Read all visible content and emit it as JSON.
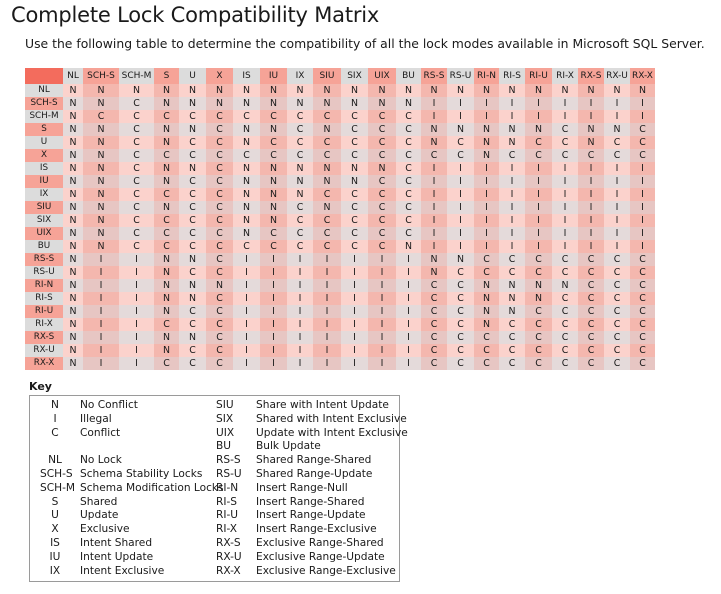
{
  "title": "Complete Lock Compatibility Matrix",
  "subtitle": "Use the following table to determine the compatibility of all the lock modes available in Microsoft SQL Server.",
  "colors": {
    "corner": "#f36c5d",
    "header_gray": "#dcdcdc",
    "header_pink": "#f6a397",
    "cell_pink": "#fbd2cc",
    "cell_pink_alt": "#f4b7ae",
    "cell_gray": "#e4dada",
    "cell_gray_alt": "#e7c6c3"
  },
  "matrix": {
    "columns": [
      "NL",
      "SCH-S",
      "SCH-M",
      "S",
      "U",
      "X",
      "IS",
      "IU",
      "IX",
      "SIU",
      "SIX",
      "UIX",
      "BU",
      "RS-S",
      "RS-U",
      "RI-N",
      "RI-S",
      "RI-U",
      "RI-X",
      "RX-S",
      "RX-U",
      "RX-X"
    ],
    "rows": [
      {
        "label": "NL",
        "cells": [
          "N",
          "N",
          "N",
          "N",
          "N",
          "N",
          "N",
          "N",
          "N",
          "N",
          "N",
          "N",
          "N",
          "N",
          "N",
          "N",
          "N",
          "N",
          "N",
          "N",
          "N",
          "N"
        ]
      },
      {
        "label": "SCH-S",
        "cells": [
          "N",
          "N",
          "C",
          "N",
          "N",
          "N",
          "N",
          "N",
          "N",
          "N",
          "N",
          "N",
          "N",
          "I",
          "I",
          "I",
          "I",
          "I",
          "I",
          "I",
          "I",
          "I"
        ]
      },
      {
        "label": "SCH-M",
        "cells": [
          "N",
          "C",
          "C",
          "C",
          "C",
          "C",
          "C",
          "C",
          "C",
          "C",
          "C",
          "C",
          "C",
          "I",
          "I",
          "I",
          "I",
          "I",
          "I",
          "I",
          "I",
          "I"
        ]
      },
      {
        "label": "S",
        "cells": [
          "N",
          "N",
          "C",
          "N",
          "N",
          "C",
          "N",
          "N",
          "C",
          "N",
          "C",
          "C",
          "C",
          "N",
          "N",
          "N",
          "N",
          "N",
          "C",
          "N",
          "N",
          "C"
        ]
      },
      {
        "label": "U",
        "cells": [
          "N",
          "N",
          "C",
          "N",
          "C",
          "C",
          "N",
          "C",
          "C",
          "C",
          "C",
          "C",
          "C",
          "N",
          "C",
          "N",
          "N",
          "C",
          "C",
          "N",
          "C",
          "C"
        ]
      },
      {
        "label": "X",
        "cells": [
          "N",
          "N",
          "C",
          "C",
          "C",
          "C",
          "C",
          "C",
          "C",
          "C",
          "C",
          "C",
          "C",
          "C",
          "C",
          "N",
          "C",
          "C",
          "C",
          "C",
          "C",
          "C"
        ]
      },
      {
        "label": "IS",
        "cells": [
          "N",
          "N",
          "C",
          "N",
          "N",
          "C",
          "N",
          "N",
          "N",
          "N",
          "N",
          "N",
          "C",
          "I",
          "I",
          "I",
          "I",
          "I",
          "I",
          "I",
          "I",
          "I"
        ]
      },
      {
        "label": "IU",
        "cells": [
          "N",
          "N",
          "C",
          "N",
          "C",
          "C",
          "N",
          "N",
          "N",
          "N",
          "N",
          "C",
          "C",
          "I",
          "I",
          "I",
          "I",
          "I",
          "I",
          "I",
          "I",
          "I"
        ]
      },
      {
        "label": "IX",
        "cells": [
          "N",
          "N",
          "C",
          "C",
          "C",
          "C",
          "N",
          "N",
          "N",
          "C",
          "C",
          "C",
          "C",
          "I",
          "I",
          "I",
          "I",
          "I",
          "I",
          "I",
          "I",
          "I"
        ]
      },
      {
        "label": "SIU",
        "cells": [
          "N",
          "N",
          "C",
          "N",
          "C",
          "C",
          "N",
          "N",
          "C",
          "N",
          "C",
          "C",
          "C",
          "I",
          "I",
          "I",
          "I",
          "I",
          "I",
          "I",
          "I",
          "I"
        ]
      },
      {
        "label": "SIX",
        "cells": [
          "N",
          "N",
          "C",
          "C",
          "C",
          "C",
          "N",
          "N",
          "C",
          "C",
          "C",
          "C",
          "C",
          "I",
          "I",
          "I",
          "I",
          "I",
          "I",
          "I",
          "I",
          "I"
        ]
      },
      {
        "label": "UIX",
        "cells": [
          "N",
          "N",
          "C",
          "C",
          "C",
          "C",
          "N",
          "C",
          "C",
          "C",
          "C",
          "C",
          "C",
          "I",
          "I",
          "I",
          "I",
          "I",
          "I",
          "I",
          "I",
          "I"
        ]
      },
      {
        "label": "BU",
        "cells": [
          "N",
          "N",
          "C",
          "C",
          "C",
          "C",
          "C",
          "C",
          "C",
          "C",
          "C",
          "C",
          "N",
          "I",
          "I",
          "I",
          "I",
          "I",
          "I",
          "I",
          "I",
          "I"
        ]
      },
      {
        "label": "RS-S",
        "cells": [
          "N",
          "I",
          "I",
          "N",
          "N",
          "C",
          "I",
          "I",
          "I",
          "I",
          "I",
          "I",
          "I",
          "N",
          "N",
          "C",
          "C",
          "C",
          "C",
          "C",
          "C",
          "C"
        ]
      },
      {
        "label": "RS-U",
        "cells": [
          "N",
          "I",
          "I",
          "N",
          "C",
          "C",
          "I",
          "I",
          "I",
          "I",
          "I",
          "I",
          "I",
          "N",
          "C",
          "C",
          "C",
          "C",
          "C",
          "C",
          "C",
          "C"
        ]
      },
      {
        "label": "RI-N",
        "cells": [
          "N",
          "I",
          "I",
          "N",
          "N",
          "N",
          "I",
          "I",
          "I",
          "I",
          "I",
          "I",
          "I",
          "C",
          "C",
          "N",
          "N",
          "N",
          "N",
          "C",
          "C",
          "C"
        ]
      },
      {
        "label": "RI-S",
        "cells": [
          "N",
          "I",
          "I",
          "N",
          "N",
          "C",
          "I",
          "I",
          "I",
          "I",
          "I",
          "I",
          "I",
          "C",
          "C",
          "N",
          "N",
          "N",
          "C",
          "C",
          "C",
          "C"
        ]
      },
      {
        "label": "RI-U",
        "cells": [
          "N",
          "I",
          "I",
          "N",
          "C",
          "C",
          "I",
          "I",
          "I",
          "I",
          "I",
          "I",
          "I",
          "C",
          "C",
          "N",
          "N",
          "C",
          "C",
          "C",
          "C",
          "C"
        ]
      },
      {
        "label": "RI-X",
        "cells": [
          "N",
          "I",
          "I",
          "C",
          "C",
          "C",
          "I",
          "I",
          "I",
          "I",
          "I",
          "I",
          "I",
          "C",
          "C",
          "N",
          "C",
          "C",
          "C",
          "C",
          "C",
          "C"
        ]
      },
      {
        "label": "RX-S",
        "cells": [
          "N",
          "I",
          "I",
          "N",
          "N",
          "C",
          "I",
          "I",
          "I",
          "I",
          "I",
          "I",
          "I",
          "C",
          "C",
          "C",
          "C",
          "C",
          "C",
          "C",
          "C",
          "C"
        ]
      },
      {
        "label": "RX-U",
        "cells": [
          "N",
          "I",
          "I",
          "N",
          "C",
          "C",
          "I",
          "I",
          "I",
          "I",
          "I",
          "I",
          "I",
          "C",
          "C",
          "C",
          "C",
          "C",
          "C",
          "C",
          "C",
          "C"
        ]
      },
      {
        "label": "RX-X",
        "cells": [
          "N",
          "I",
          "I",
          "C",
          "C",
          "C",
          "I",
          "I",
          "I",
          "I",
          "I",
          "I",
          "I",
          "C",
          "C",
          "C",
          "C",
          "C",
          "C",
          "C",
          "C",
          "C"
        ]
      }
    ]
  },
  "key": {
    "title": "Key",
    "left": [
      {
        "code": "N",
        "desc": "No Conflict"
      },
      {
        "code": "I",
        "desc": "Illegal"
      },
      {
        "code": "C",
        "desc": "Conflict"
      },
      null,
      {
        "code": "NL",
        "desc": "No Lock"
      },
      {
        "code": "SCH-S",
        "desc": "Schema Stability Locks"
      },
      {
        "code": "SCH-M",
        "desc": "Schema Modification Locks"
      },
      {
        "code": "S",
        "desc": "Shared"
      },
      {
        "code": "U",
        "desc": "Update"
      },
      {
        "code": "X",
        "desc": "Exclusive"
      },
      {
        "code": "IS",
        "desc": "Intent Shared"
      },
      {
        "code": "IU",
        "desc": "Intent Update"
      },
      {
        "code": "IX",
        "desc": "Intent Exclusive"
      }
    ],
    "right": [
      {
        "code": "SIU",
        "desc": "Share with Intent Update"
      },
      {
        "code": "SIX",
        "desc": "Shared with Intent Exclusive"
      },
      {
        "code": "UIX",
        "desc": "Update with Intent Exclusive"
      },
      {
        "code": "BU",
        "desc": "Bulk Update"
      },
      {
        "code": "RS-S",
        "desc": "Shared Range-Shared"
      },
      {
        "code": "RS-U",
        "desc": "Shared Range-Update"
      },
      {
        "code": "RI-N",
        "desc": "Insert Range-Null"
      },
      {
        "code": "RI-S",
        "desc": "Insert Range-Shared"
      },
      {
        "code": "RI-U",
        "desc": "Insert Range-Update"
      },
      {
        "code": "RI-X",
        "desc": "Insert Range-Exclusive"
      },
      {
        "code": "RX-S",
        "desc": "Exclusive Range-Shared"
      },
      {
        "code": "RX-U",
        "desc": "Exclusive Range-Update"
      },
      {
        "code": "RX-X",
        "desc": "Exclusive Range-Exclusive"
      }
    ]
  }
}
